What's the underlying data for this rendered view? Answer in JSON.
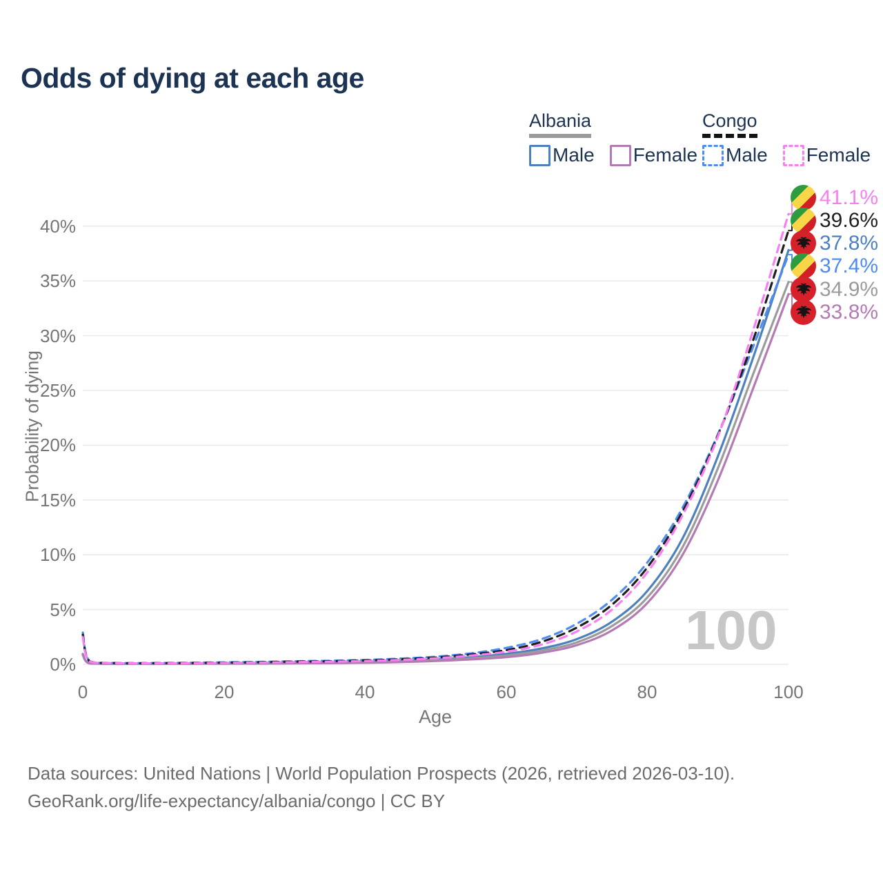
{
  "title": "Odds of dying at each age",
  "legend": {
    "albania": {
      "label": "Albania",
      "male_label": "Male",
      "female_label": "Female"
    },
    "congo": {
      "label": "Congo",
      "male_label": "Male",
      "female_label": "Female"
    }
  },
  "watermark_age": "100",
  "footer": {
    "line1": "Data sources: United Nations | World Population Prospects (2026, retrieved 2026-03-10).",
    "line2": "GeoRank.org/life-expectancy/albania/congo | CC BY"
  },
  "colors": {
    "albania_male": "#4d80be",
    "albania_total": "#9b9b9b",
    "albania_female": "#b47ab4",
    "congo_male": "#4e8cf0",
    "congo_total": "#1f1f1f",
    "congo_female": "#f97ef2",
    "title_navy": "#1d3354",
    "grid": "#eaeaea"
  },
  "chart_data": {
    "type": "line",
    "title": "Odds of dying at each age",
    "xlabel": "Age",
    "ylabel": "Probability of dying",
    "xlim": [
      0,
      100
    ],
    "ylim": [
      0,
      43
    ],
    "grid": "horizontal",
    "legend_position": "top-right",
    "xticks": [
      "0",
      "20",
      "40",
      "60",
      "80",
      "100"
    ],
    "xtick_values": [
      0,
      20,
      40,
      60,
      80,
      100
    ],
    "yticks": [
      "0%",
      "5%",
      "10%",
      "15%",
      "20%",
      "25%",
      "30%",
      "35%",
      "40%"
    ],
    "ytick_values": [
      0,
      5,
      10,
      15,
      20,
      25,
      30,
      35,
      40
    ],
    "series": [
      {
        "name": "Albania Male",
        "style": "solid",
        "color": "#4d80be",
        "points": [
          [
            0,
            0.95
          ],
          [
            1,
            0.08
          ],
          [
            5,
            0.04
          ],
          [
            10,
            0.04
          ],
          [
            15,
            0.06
          ],
          [
            20,
            0.08
          ],
          [
            25,
            0.1
          ],
          [
            30,
            0.12
          ],
          [
            35,
            0.16
          ],
          [
            40,
            0.21
          ],
          [
            45,
            0.3
          ],
          [
            50,
            0.45
          ],
          [
            55,
            0.65
          ],
          [
            60,
            0.95
          ],
          [
            65,
            1.45
          ],
          [
            70,
            2.3
          ],
          [
            75,
            3.9
          ],
          [
            80,
            6.7
          ],
          [
            85,
            11.5
          ],
          [
            90,
            19.0
          ],
          [
            95,
            28.0
          ],
          [
            100,
            37.8
          ]
        ]
      },
      {
        "name": "Albania",
        "style": "solid",
        "color": "#9b9b9b",
        "points": [
          [
            0,
            0.9
          ],
          [
            1,
            0.075
          ],
          [
            5,
            0.035
          ],
          [
            10,
            0.035
          ],
          [
            15,
            0.05
          ],
          [
            20,
            0.065
          ],
          [
            25,
            0.08
          ],
          [
            30,
            0.1
          ],
          [
            35,
            0.13
          ],
          [
            40,
            0.17
          ],
          [
            45,
            0.25
          ],
          [
            50,
            0.37
          ],
          [
            55,
            0.55
          ],
          [
            60,
            0.8
          ],
          [
            65,
            1.25
          ],
          [
            70,
            2.0
          ],
          [
            75,
            3.5
          ],
          [
            80,
            6.1
          ],
          [
            85,
            10.7
          ],
          [
            90,
            17.9
          ],
          [
            95,
            26.5
          ],
          [
            100,
            34.9
          ]
        ]
      },
      {
        "name": "Albania Female",
        "style": "solid",
        "color": "#b47ab4",
        "points": [
          [
            0,
            0.85
          ],
          [
            1,
            0.07
          ],
          [
            5,
            0.03
          ],
          [
            10,
            0.03
          ],
          [
            15,
            0.04
          ],
          [
            20,
            0.05
          ],
          [
            25,
            0.06
          ],
          [
            30,
            0.08
          ],
          [
            35,
            0.1
          ],
          [
            40,
            0.14
          ],
          [
            45,
            0.2
          ],
          [
            50,
            0.3
          ],
          [
            55,
            0.45
          ],
          [
            60,
            0.65
          ],
          [
            65,
            1.05
          ],
          [
            70,
            1.75
          ],
          [
            75,
            3.1
          ],
          [
            80,
            5.6
          ],
          [
            85,
            10.0
          ],
          [
            90,
            16.8
          ],
          [
            95,
            25.2
          ],
          [
            100,
            33.8
          ]
        ]
      },
      {
        "name": "Congo Male",
        "style": "dashed",
        "color": "#4e8cf0",
        "points": [
          [
            0,
            2.9
          ],
          [
            1,
            0.28
          ],
          [
            5,
            0.12
          ],
          [
            10,
            0.12
          ],
          [
            15,
            0.14
          ],
          [
            20,
            0.18
          ],
          [
            25,
            0.22
          ],
          [
            30,
            0.28
          ],
          [
            35,
            0.33
          ],
          [
            40,
            0.4
          ],
          [
            45,
            0.52
          ],
          [
            50,
            0.7
          ],
          [
            55,
            1.0
          ],
          [
            60,
            1.5
          ],
          [
            65,
            2.3
          ],
          [
            70,
            3.7
          ],
          [
            75,
            5.9
          ],
          [
            80,
            9.3
          ],
          [
            85,
            14.3
          ],
          [
            90,
            21.0
          ],
          [
            95,
            29.0
          ],
          [
            100,
            37.4
          ]
        ]
      },
      {
        "name": "Congo",
        "style": "dashed",
        "color": "#1f1f1f",
        "points": [
          [
            0,
            2.7
          ],
          [
            1,
            0.26
          ],
          [
            5,
            0.11
          ],
          [
            10,
            0.1
          ],
          [
            15,
            0.12
          ],
          [
            20,
            0.15
          ],
          [
            25,
            0.19
          ],
          [
            30,
            0.24
          ],
          [
            35,
            0.28
          ],
          [
            40,
            0.35
          ],
          [
            45,
            0.46
          ],
          [
            50,
            0.62
          ],
          [
            55,
            0.9
          ],
          [
            60,
            1.3
          ],
          [
            65,
            2.05
          ],
          [
            70,
            3.35
          ],
          [
            75,
            5.45
          ],
          [
            80,
            8.85
          ],
          [
            85,
            13.95
          ],
          [
            90,
            20.9
          ],
          [
            95,
            29.6
          ],
          [
            100,
            39.6
          ]
        ]
      },
      {
        "name": "Congo Female",
        "style": "dashed",
        "color": "#f97ef2",
        "points": [
          [
            0,
            2.5
          ],
          [
            1,
            0.25
          ],
          [
            5,
            0.1
          ],
          [
            10,
            0.09
          ],
          [
            15,
            0.1
          ],
          [
            20,
            0.13
          ],
          [
            25,
            0.16
          ],
          [
            30,
            0.2
          ],
          [
            35,
            0.24
          ],
          [
            40,
            0.3
          ],
          [
            45,
            0.4
          ],
          [
            50,
            0.55
          ],
          [
            55,
            0.8
          ],
          [
            60,
            1.15
          ],
          [
            65,
            1.8
          ],
          [
            70,
            3.0
          ],
          [
            75,
            5.0
          ],
          [
            80,
            8.4
          ],
          [
            85,
            13.6
          ],
          [
            90,
            20.8
          ],
          [
            95,
            30.5
          ],
          [
            100,
            41.1
          ]
        ]
      }
    ],
    "end_labels": [
      {
        "value": "41.1%",
        "value_num": 41.1,
        "series": "Congo Female",
        "flag": "congo-flag",
        "color": "#f97ef2"
      },
      {
        "value": "39.6%",
        "value_num": 39.6,
        "series": "Congo",
        "flag": "congo-flag",
        "color": "#1f1f1f"
      },
      {
        "value": "37.8%",
        "value_num": 37.8,
        "series": "Albania Male",
        "flag": "albania-flag",
        "color": "#4d80be"
      },
      {
        "value": "37.4%",
        "value_num": 37.4,
        "series": "Congo Male",
        "flag": "congo-flag",
        "color": "#4e8cf0"
      },
      {
        "value": "34.9%",
        "value_num": 34.9,
        "series": "Albania",
        "flag": "albania-flag",
        "color": "#9b9b9b"
      },
      {
        "value": "33.8%",
        "value_num": 33.8,
        "series": "Albania Female",
        "flag": "albania-flag",
        "color": "#b47ab4"
      }
    ],
    "watermark": "100"
  }
}
